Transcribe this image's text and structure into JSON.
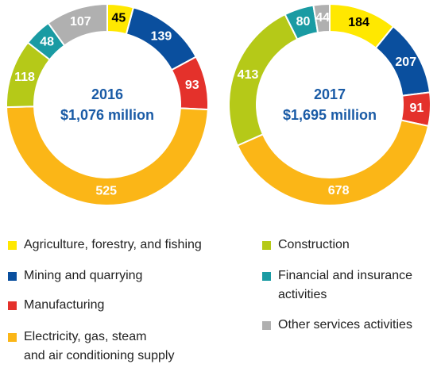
{
  "chart_data": [
    {
      "type": "donut",
      "center_label": [
        "2016",
        "$1,076 million"
      ],
      "categories": [
        "Agriculture, forestry, and fishing",
        "Mining and quarrying",
        "Manufacturing",
        "Electricity, gas, steam\nand air conditioning supply",
        "Construction",
        "Financial and insurance\nactivities",
        "Other services activities"
      ],
      "colors": [
        "#ffe800",
        "#0a4f9e",
        "#e4312b",
        "#fbb617",
        "#b5c918",
        "#1a9ba3",
        "#b0b0b0"
      ],
      "values": [
        45,
        139,
        93,
        525,
        118,
        48,
        107
      ]
    },
    {
      "type": "donut",
      "center_label": [
        "2017",
        "$1,695 million"
      ],
      "values": [
        184,
        207,
        91,
        678,
        413,
        80,
        44
      ]
    }
  ]
}
